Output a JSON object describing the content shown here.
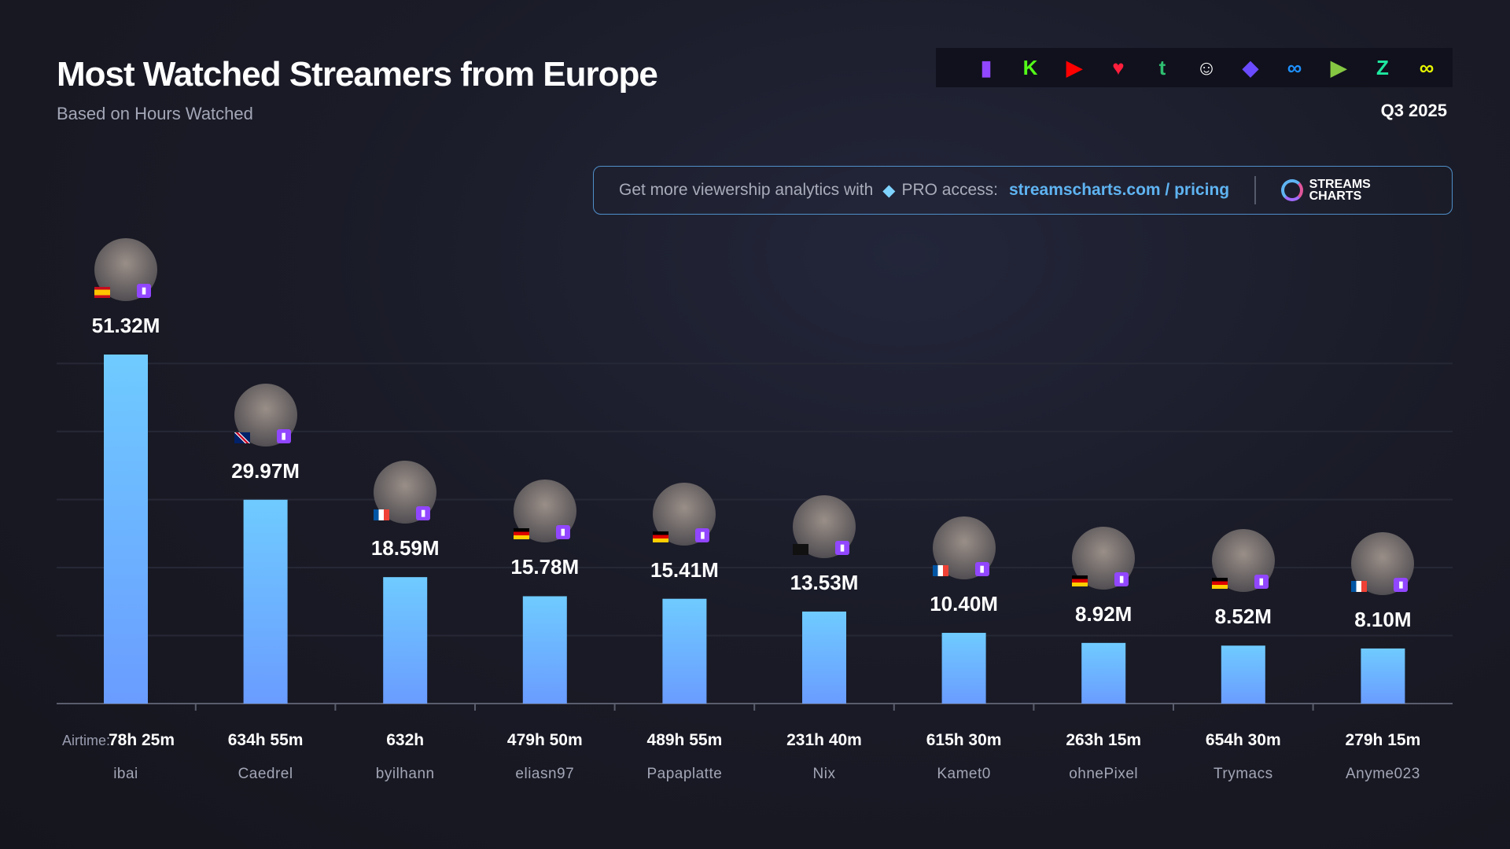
{
  "header": {
    "title": "Most Watched Streamers from Europe",
    "subtitle": "Based on Hours Watched",
    "period": "Q3 2025"
  },
  "platforms": [
    {
      "icon": "twitch-icon",
      "color": "#9146ff",
      "glyph": "▮"
    },
    {
      "icon": "kick-icon",
      "color": "#53fc18",
      "glyph": "K"
    },
    {
      "icon": "youtube-icon",
      "color": "#ff0000",
      "glyph": "▶"
    },
    {
      "icon": "vk-play-live-icon",
      "color": "#ff1f3d",
      "glyph": "♥"
    },
    {
      "icon": "trovo-icon",
      "color": "#2fbf71",
      "glyph": "t"
    },
    {
      "icon": "bigo-live-icon",
      "color": "#ffffff",
      "glyph": "☺"
    },
    {
      "icon": "nimo-icon",
      "color": "#6b4bff",
      "glyph": "◆"
    },
    {
      "icon": "infinity-blue-icon",
      "color": "#1e90ff",
      "glyph": "∞"
    },
    {
      "icon": "rumble-icon",
      "color": "#85c742",
      "glyph": "▶"
    },
    {
      "icon": "zhanqi-icon",
      "color": "#1ee8a0",
      "glyph": "Z"
    },
    {
      "icon": "infinity-yellow-icon",
      "color": "#e6f500",
      "glyph": "∞"
    }
  ],
  "banner": {
    "text": "Get more viewership analytics with",
    "pro": "PRO access:",
    "link": "streamscharts.com / pricing",
    "logo_line1": "STREAMS",
    "logo_line2": "CHARTS"
  },
  "colors": {
    "bar_top": "#6fcbff",
    "bar_bottom": "#6a9cff",
    "twitch": "#9146ff"
  },
  "chart_data": {
    "type": "bar",
    "title": "Most Watched Streamers from Europe",
    "subtitle": "Based on Hours Watched",
    "unit": "hours watched (M)",
    "ylim": [
      0,
      55
    ],
    "grid": true,
    "airtime_label": "Airtime:",
    "categories": [
      "ibai",
      "Caedrel",
      "byilhann",
      "eliasn97",
      "Papaplatte",
      "Nix",
      "Kamet0",
      "ohnePixel",
      "Trymacs",
      "Anyme023"
    ],
    "values": [
      51.32,
      29.97,
      18.59,
      15.78,
      15.41,
      13.53,
      10.4,
      8.92,
      8.52,
      8.1
    ],
    "value_labels": [
      "51.32M",
      "29.97M",
      "18.59M",
      "15.78M",
      "15.41M",
      "13.53M",
      "10.40M",
      "8.92M",
      "8.52M",
      "8.10M"
    ],
    "airtime": [
      "78h 25m",
      "634h 55m",
      "632h",
      "479h 50m",
      "489h 55m",
      "231h 40m",
      "615h 30m",
      "263h 15m",
      "654h 30m",
      "279h 15m"
    ],
    "countries": [
      "ES",
      "GB",
      "FR",
      "DE",
      "DE",
      "unknown",
      "FR",
      "DE",
      "DE",
      "FR"
    ],
    "platform": "twitch"
  }
}
